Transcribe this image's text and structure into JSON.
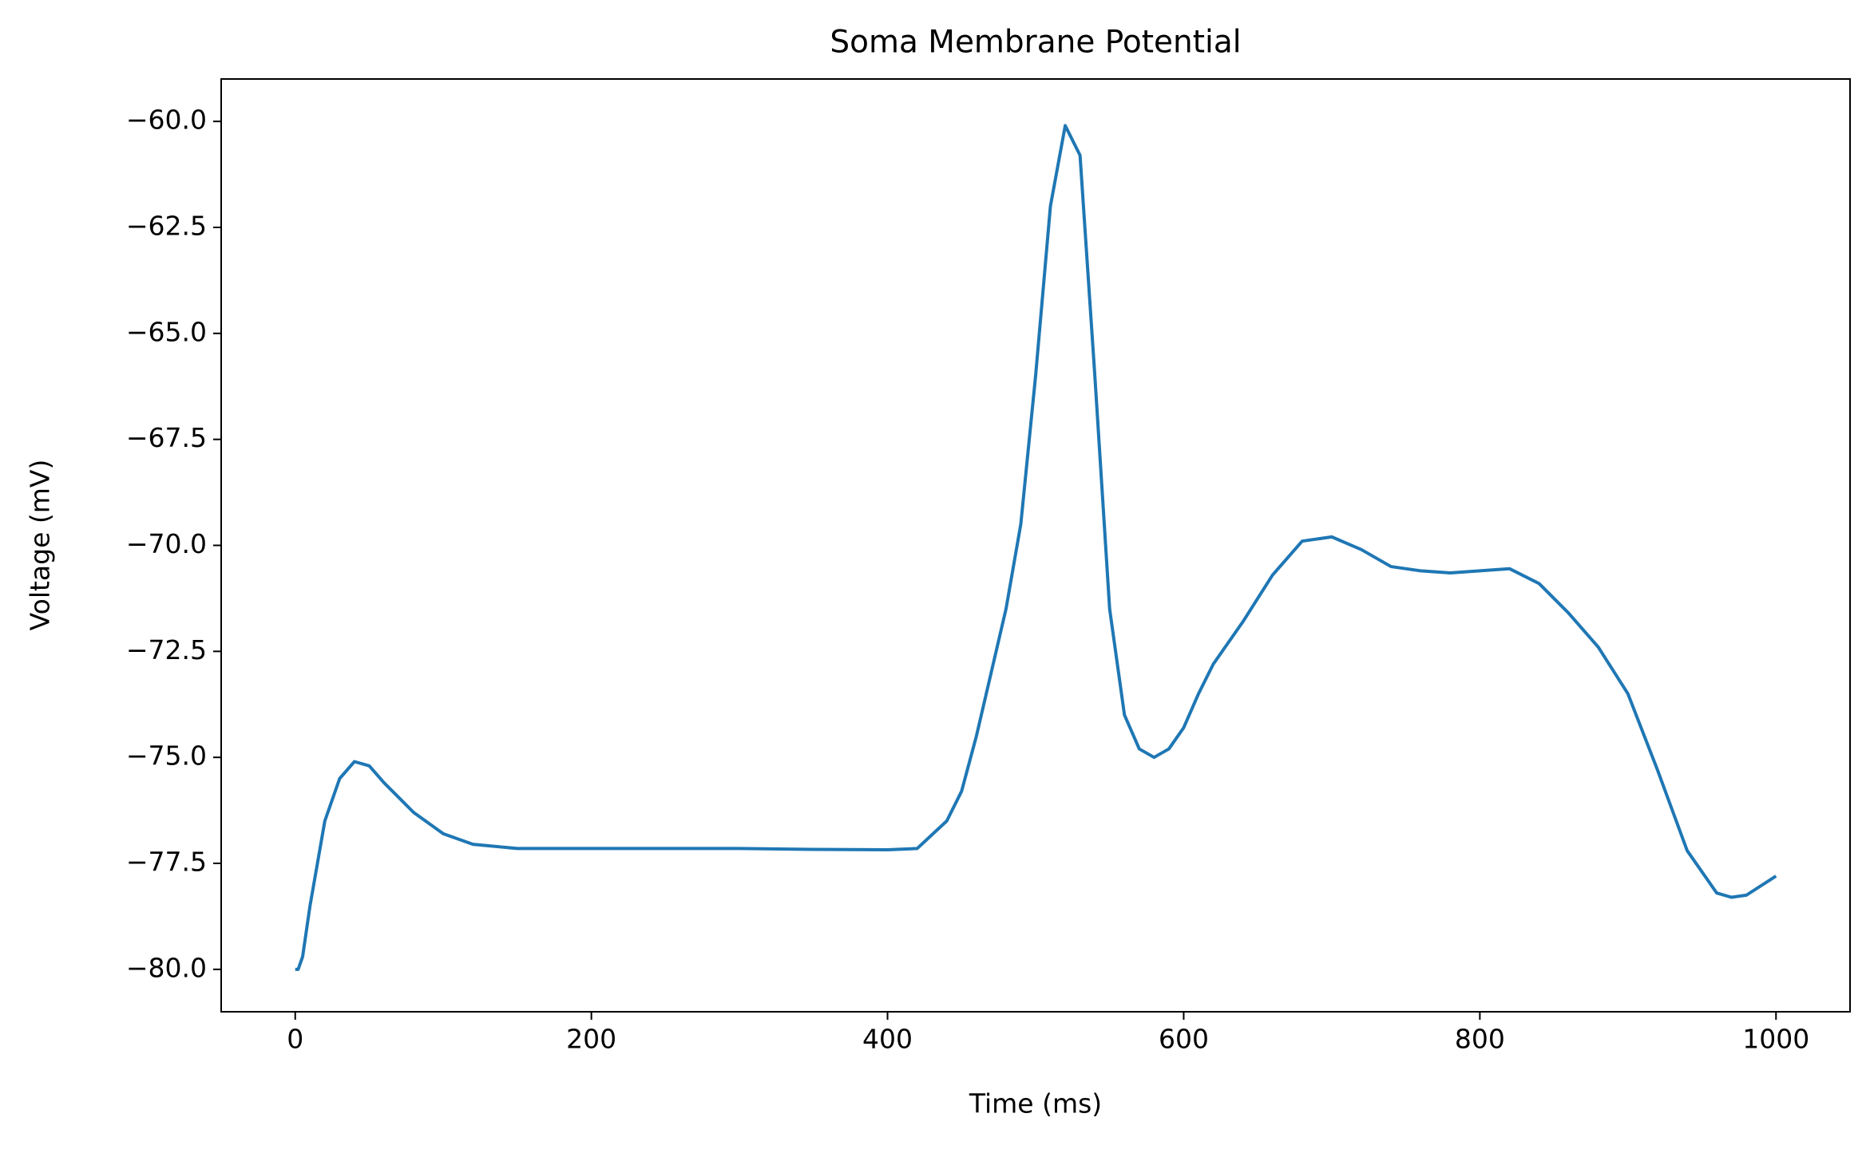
{
  "chart_data": {
    "type": "line",
    "title": "Soma Membrane Potential",
    "xlabel": "Time (ms)",
    "ylabel": "Voltage (mV)",
    "x": [
      0,
      2,
      5,
      10,
      20,
      30,
      40,
      50,
      60,
      80,
      100,
      120,
      150,
      200,
      250,
      300,
      350,
      400,
      420,
      440,
      450,
      460,
      470,
      480,
      490,
      500,
      510,
      520,
      530,
      540,
      550,
      560,
      570,
      580,
      590,
      600,
      610,
      620,
      640,
      660,
      680,
      700,
      720,
      740,
      760,
      780,
      800,
      820,
      840,
      860,
      880,
      900,
      920,
      940,
      960,
      970,
      980,
      1000
    ],
    "series": [
      {
        "color": "#1f77b4",
        "values": [
          -80,
          -80.0,
          -79.7,
          -78.5,
          -76.5,
          -75.5,
          -75.1,
          -75.2,
          -75.6,
          -76.3,
          -76.8,
          -77.05,
          -77.15,
          -77.15,
          -77.15,
          -77.15,
          -77.17,
          -77.18,
          -77.15,
          -76.5,
          -75.8,
          -74.5,
          -73.0,
          -71.5,
          -69.5,
          -66.0,
          -62.0,
          -60.1,
          -60.8,
          -66.0,
          -71.5,
          -74.0,
          -74.8,
          -75.0,
          -74.8,
          -74.3,
          -73.5,
          -72.8,
          -71.8,
          -70.7,
          -69.9,
          -69.8,
          -70.1,
          -70.5,
          -70.6,
          -70.65,
          -70.6,
          -70.55,
          -70.9,
          -71.6,
          -72.4,
          -73.5,
          -75.3,
          -77.2,
          -78.2,
          -78.3,
          -78.25,
          -77.8
        ]
      }
    ],
    "xlim": [
      -50,
      1050
    ],
    "ylim": [
      -81,
      -59
    ],
    "xticks": [
      0,
      200,
      400,
      600,
      800,
      1000
    ],
    "yticks": [
      {
        "value": -80,
        "label": "−80.0"
      },
      {
        "value": -77.5,
        "label": "−77.5"
      },
      {
        "value": -75,
        "label": "−75.0"
      },
      {
        "value": -72.5,
        "label": "−72.5"
      },
      {
        "value": -70,
        "label": "−70.0"
      },
      {
        "value": -67.5,
        "label": "−67.5"
      },
      {
        "value": -65,
        "label": "−65.0"
      },
      {
        "value": -62.5,
        "label": "−62.5"
      },
      {
        "value": -60,
        "label": "−60.0"
      }
    ],
    "grid": false
  }
}
